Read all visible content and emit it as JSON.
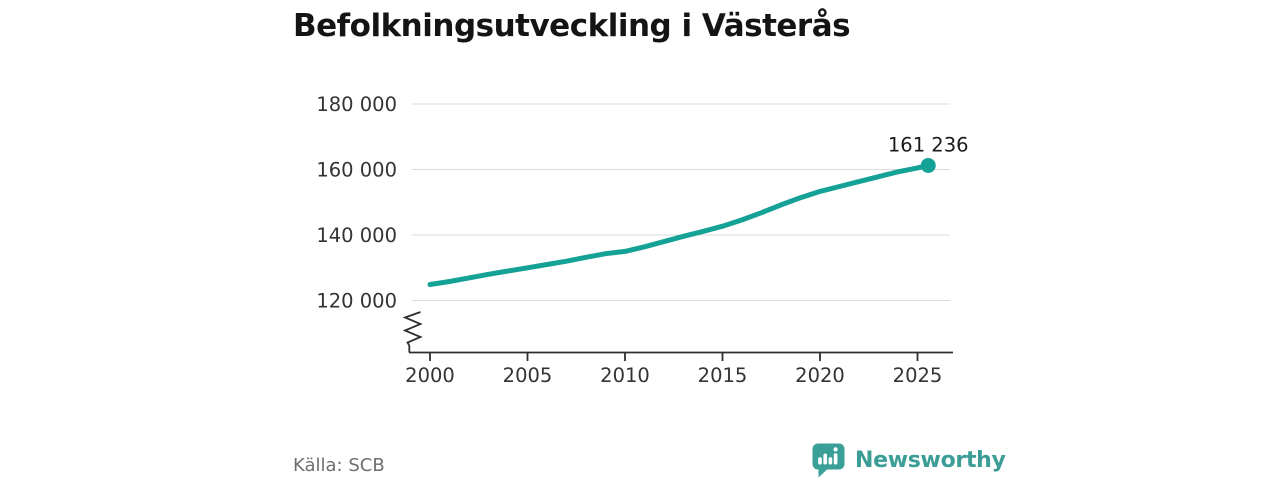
{
  "title": "Befolkningsutveckling i Västerås",
  "source": "Källa: SCB",
  "branding": {
    "name": "Newsworthy",
    "icon": "newsworthy-speech-bubble-chart-icon",
    "text_color": "#3c9d96",
    "icon_color": "#3aa097"
  },
  "colors": {
    "line": "#14a296",
    "marker": "#14a296",
    "grid": "#dbdbdb",
    "axis": "#2f2f2f",
    "tick_text": "#333333",
    "title_text": "#141414",
    "source_text": "#6f6f6f"
  },
  "chart_data": {
    "type": "line",
    "title": "Befolkningsutveckling i Västerås",
    "xlabel": "",
    "ylabel": "",
    "grid": "horizontal",
    "legend": "none",
    "y_axis_break": true,
    "xlim": [
      1999.4,
      2027.2
    ],
    "ylim_visible": [
      120000,
      180000
    ],
    "x_ticks": [
      2000,
      2005,
      2010,
      2015,
      2020,
      2025
    ],
    "y_ticks": [
      {
        "value": 120000,
        "label": "120 000"
      },
      {
        "value": 140000,
        "label": "140 000"
      },
      {
        "value": 160000,
        "label": "160 000"
      },
      {
        "value": 180000,
        "label": "180 000"
      }
    ],
    "points": [
      [
        2000,
        124900
      ],
      [
        2001,
        125800
      ],
      [
        2002,
        126900
      ],
      [
        2003,
        128000
      ],
      [
        2004,
        129000
      ],
      [
        2005,
        130000
      ],
      [
        2006,
        131000
      ],
      [
        2007,
        132000
      ],
      [
        2008,
        133200
      ],
      [
        2009,
        134300
      ],
      [
        2010,
        135000
      ],
      [
        2011,
        136400
      ],
      [
        2012,
        138000
      ],
      [
        2013,
        139600
      ],
      [
        2014,
        141100
      ],
      [
        2015,
        142700
      ],
      [
        2016,
        144600
      ],
      [
        2017,
        146800
      ],
      [
        2018,
        149200
      ],
      [
        2019,
        151400
      ],
      [
        2020,
        153300
      ],
      [
        2021,
        154800
      ],
      [
        2022,
        156300
      ],
      [
        2023,
        157800
      ],
      [
        2024,
        159300
      ],
      [
        2025,
        160500
      ],
      [
        2025.55,
        161236
      ]
    ],
    "latest": {
      "value": 161236,
      "label": "161 236"
    }
  }
}
